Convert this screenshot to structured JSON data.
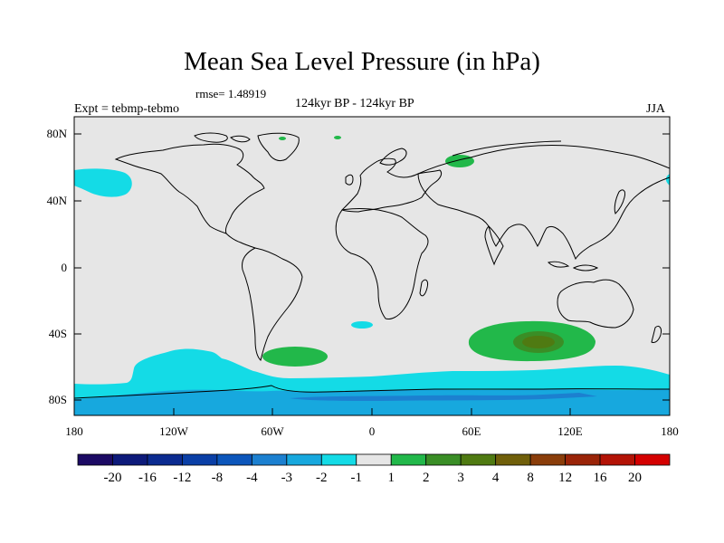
{
  "title": "Mean Sea Level Pressure (in hPa)",
  "rmse": "rmse= 1.48919",
  "experiment": "Expt = tebmp-tebmo",
  "period": "124kyr BP - 124kyr BP",
  "season": "JJA",
  "lat_labels": [
    "80N",
    "40N",
    "0",
    "40S",
    "80S"
  ],
  "lon_labels": [
    "180",
    "120W",
    "60W",
    "0",
    "60E",
    "120E",
    "180"
  ],
  "colorbar": {
    "labels": [
      "-20",
      "-16",
      "-12",
      "-8",
      "-4",
      "-3",
      "-2",
      "-1",
      "1",
      "2",
      "3",
      "4",
      "8",
      "12",
      "16",
      "20"
    ],
    "colors": [
      "#1c0a64",
      "#0d1a7a",
      "#0b2b90",
      "#0a3fa6",
      "#0c56bb",
      "#1c80d0",
      "#17a8de",
      "#14dbe6",
      "#e6e6e6",
      "#22b84a",
      "#3a8e26",
      "#4f7a12",
      "#705f0a",
      "#8a3d0a",
      "#9a2408",
      "#b31306",
      "#d40000"
    ]
  }
}
